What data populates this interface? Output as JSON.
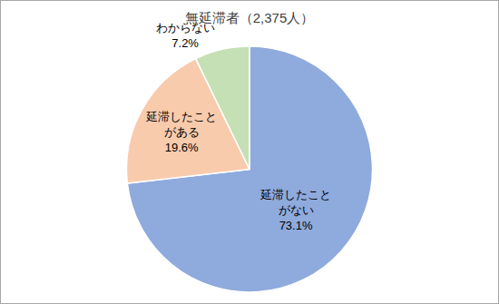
{
  "chart_data": {
    "type": "pie",
    "title": "無延滞者（2,375人）",
    "categories": [
      "延滞したことがない",
      "延滞したことがある",
      "わからない"
    ],
    "values": [
      73.1,
      19.6,
      7.2
    ],
    "value_labels": [
      "73.1%",
      "19.6%",
      "7.2%"
    ],
    "colors": [
      "#8FAADC",
      "#F8CBAD",
      "#C5E0B4"
    ],
    "data_labels": true
  }
}
